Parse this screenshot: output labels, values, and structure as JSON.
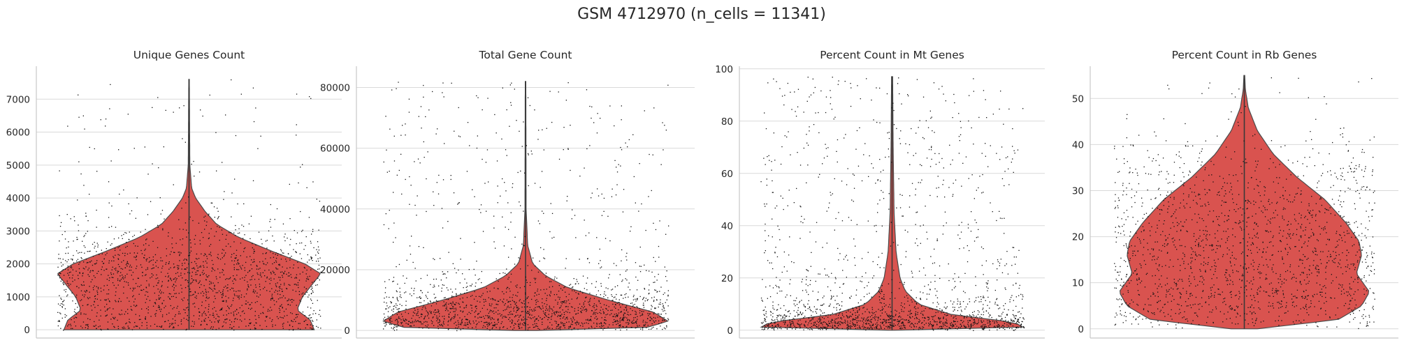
{
  "figure": {
    "title": "GSM 4712970 (n_cells = 11341)"
  },
  "chart_data": [
    {
      "type": "violin",
      "title": "Unique Genes Count",
      "xlabel": "",
      "ylabel": "",
      "ylim": [
        -250,
        8000
      ],
      "yticks": [
        0,
        1000,
        2000,
        3000,
        4000,
        5000,
        6000,
        7000
      ],
      "grid": true,
      "color": "#d9534f",
      "max": 7600,
      "density": [
        [
          0,
          0.95
        ],
        [
          300,
          0.92
        ],
        [
          600,
          0.82
        ],
        [
          1000,
          0.86
        ],
        [
          1400,
          0.94
        ],
        [
          1700,
          1.0
        ],
        [
          2000,
          0.88
        ],
        [
          2400,
          0.62
        ],
        [
          2800,
          0.38
        ],
        [
          3200,
          0.21
        ],
        [
          3600,
          0.12
        ],
        [
          4000,
          0.05
        ],
        [
          4300,
          0.02
        ],
        [
          5000,
          0.006
        ],
        [
          7600,
          0.002
        ]
      ]
    },
    {
      "type": "violin",
      "title": "Total Gene Count",
      "xlabel": "",
      "ylabel": "",
      "ylim": [
        -2500,
        87000
      ],
      "yticks": [
        0,
        20000,
        40000,
        60000,
        80000
      ],
      "grid": true,
      "color": "#d9534f",
      "max": 82000,
      "density": [
        [
          0,
          0.08
        ],
        [
          1000,
          0.85
        ],
        [
          3000,
          1.0
        ],
        [
          6000,
          0.9
        ],
        [
          10000,
          0.58
        ],
        [
          14000,
          0.3
        ],
        [
          18000,
          0.14
        ],
        [
          22000,
          0.05
        ],
        [
          28000,
          0.015
        ],
        [
          40000,
          0.004
        ],
        [
          82000,
          0.002
        ]
      ]
    },
    {
      "type": "violin",
      "title": "Percent Count in Mt Genes",
      "xlabel": "",
      "ylabel": "",
      "ylim": [
        -3,
        101
      ],
      "yticks": [
        0,
        20,
        40,
        60,
        80,
        100
      ],
      "grid": true,
      "color": "#d9534f",
      "max": 97,
      "density": [
        [
          0,
          0.02
        ],
        [
          1,
          1.0
        ],
        [
          3,
          0.93
        ],
        [
          6,
          0.45
        ],
        [
          10,
          0.2
        ],
        [
          15,
          0.1
        ],
        [
          20,
          0.06
        ],
        [
          30,
          0.03
        ],
        [
          45,
          0.015
        ],
        [
          70,
          0.008
        ],
        [
          97,
          0.004
        ]
      ]
    },
    {
      "type": "violin",
      "title": "Percent Count in Rb Genes",
      "xlabel": "",
      "ylabel": "",
      "ylim": [
        -2,
        57
      ],
      "yticks": [
        0,
        10,
        20,
        30,
        40,
        50
      ],
      "grid": true,
      "color": "#d9534f",
      "max": 55,
      "density": [
        [
          0,
          0.1
        ],
        [
          2,
          0.72
        ],
        [
          5,
          0.9
        ],
        [
          8,
          0.96
        ],
        [
          12,
          0.86
        ],
        [
          16,
          0.9
        ],
        [
          19,
          0.88
        ],
        [
          23,
          0.78
        ],
        [
          28,
          0.62
        ],
        [
          33,
          0.4
        ],
        [
          38,
          0.22
        ],
        [
          43,
          0.1
        ],
        [
          48,
          0.03
        ],
        [
          52,
          0.008
        ],
        [
          55,
          0.003
        ]
      ]
    }
  ]
}
